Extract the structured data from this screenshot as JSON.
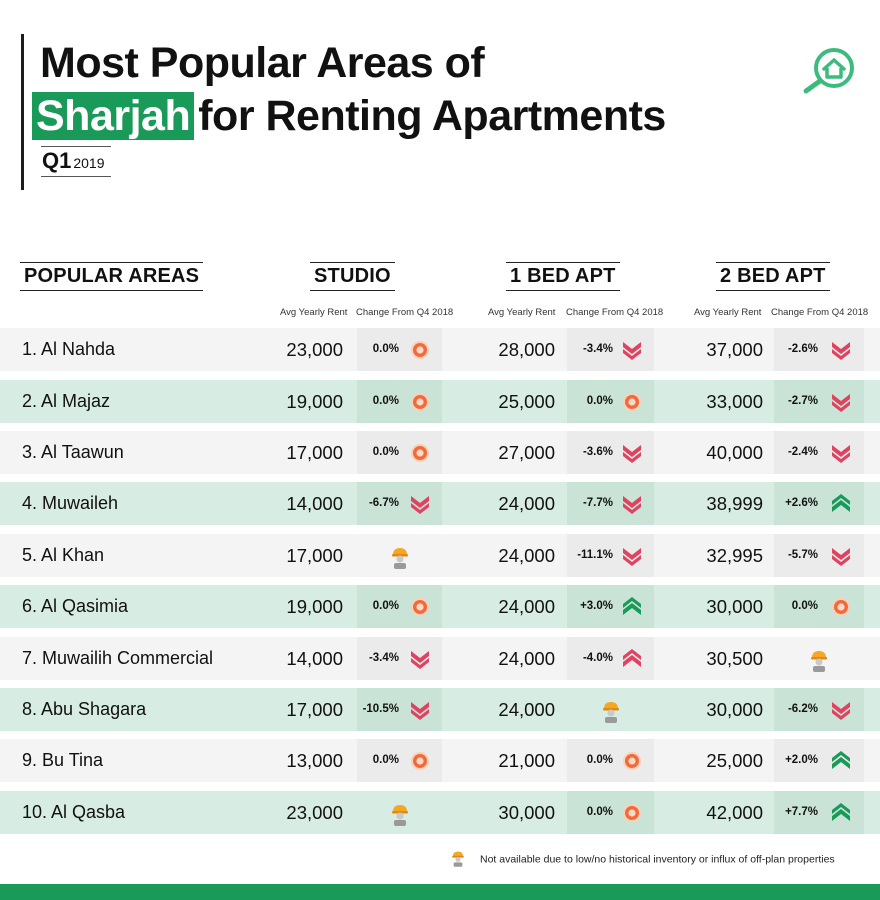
{
  "title": {
    "line1": "Most Popular Areas of",
    "highlight": "Sharjah",
    "line2_rest": "for Renting Apartments",
    "quarter": "Q1",
    "year": "2019"
  },
  "columns": {
    "areas": "POPULAR AREAS",
    "studio": "STUDIO",
    "one_bed": "1 BED APT",
    "two_bed": "2 BED APT",
    "avg_label": "Avg Yearly Rent",
    "change_label": "Change From Q4 2018"
  },
  "colors": {
    "brand_green": "#1a9a58",
    "down_red": "#e0435f",
    "up_green": "#1a9a58",
    "neutral_orange": "#f06a3c"
  },
  "rows": [
    {
      "area": "1.  Al Nahda",
      "studio_rent": "23,000",
      "studio_change": "0.0%",
      "studio_trend": "neutral",
      "one_rent": "28,000",
      "one_change": "-3.4%",
      "one_trend": "down",
      "two_rent": "37,000",
      "two_change": "-2.6%",
      "two_trend": "down"
    },
    {
      "area": "2. Al Majaz",
      "studio_rent": "19,000",
      "studio_change": "0.0%",
      "studio_trend": "neutral",
      "one_rent": "25,000",
      "one_change": "0.0%",
      "one_trend": "neutral",
      "two_rent": "33,000",
      "two_change": "-2.7%",
      "two_trend": "down"
    },
    {
      "area": "3. Al Taawun",
      "studio_rent": "17,000",
      "studio_change": "0.0%",
      "studio_trend": "neutral",
      "one_rent": "27,000",
      "one_change": "-3.6%",
      "one_trend": "down",
      "two_rent": "40,000",
      "two_change": "-2.4%",
      "two_trend": "down"
    },
    {
      "area": "4.  Muwaileh",
      "studio_rent": "14,000",
      "studio_change": "-6.7%",
      "studio_trend": "down",
      "one_rent": "24,000",
      "one_change": "-7.7%",
      "one_trend": "down",
      "two_rent": "38,999",
      "two_change": "+2.6%",
      "two_trend": "up"
    },
    {
      "area": "5. Al Khan",
      "studio_rent": "17,000",
      "studio_change": "",
      "studio_trend": "na",
      "one_rent": "24,000",
      "one_change": "-11.1%",
      "one_trend": "down",
      "two_rent": "32,995",
      "two_change": "-5.7%",
      "two_trend": "down"
    },
    {
      "area": "6. Al Qasimia",
      "studio_rent": "19,000",
      "studio_change": "0.0%",
      "studio_trend": "neutral",
      "one_rent": "24,000",
      "one_change": "+3.0%",
      "one_trend": "up",
      "two_rent": "30,000",
      "two_change": "0.0%",
      "two_trend": "neutral"
    },
    {
      "area": "7. Muwailih Commercial",
      "studio_rent": "14,000",
      "studio_change": "-3.4%",
      "studio_trend": "down",
      "one_rent": "24,000",
      "one_change": "-4.0%",
      "one_trend": "up_red",
      "two_rent": "30,500",
      "two_change": "",
      "two_trend": "na"
    },
    {
      "area": "8. Abu Shagara",
      "studio_rent": "17,000",
      "studio_change": "-10.5%",
      "studio_trend": "down",
      "one_rent": "24,000",
      "one_change": "",
      "one_trend": "na",
      "two_rent": "30,000",
      "two_change": "-6.2%",
      "two_trend": "down"
    },
    {
      "area": "9. Bu Tina",
      "studio_rent": "13,000",
      "studio_change": "0.0%",
      "studio_trend": "neutral",
      "one_rent": "21,000",
      "one_change": "0.0%",
      "one_trend": "neutral",
      "two_rent": "25,000",
      "two_change": "+2.0%",
      "two_trend": "up"
    },
    {
      "area": "10. Al Qasba",
      "studio_rent": "23,000",
      "studio_change": "",
      "studio_trend": "na",
      "one_rent": "30,000",
      "one_change": "0.0%",
      "one_trend": "neutral",
      "two_rent": "42,000",
      "two_change": "+7.7%",
      "two_trend": "up"
    }
  ],
  "footnote": "Not available due to low/no historical inventory or influx of off-plan properties"
}
